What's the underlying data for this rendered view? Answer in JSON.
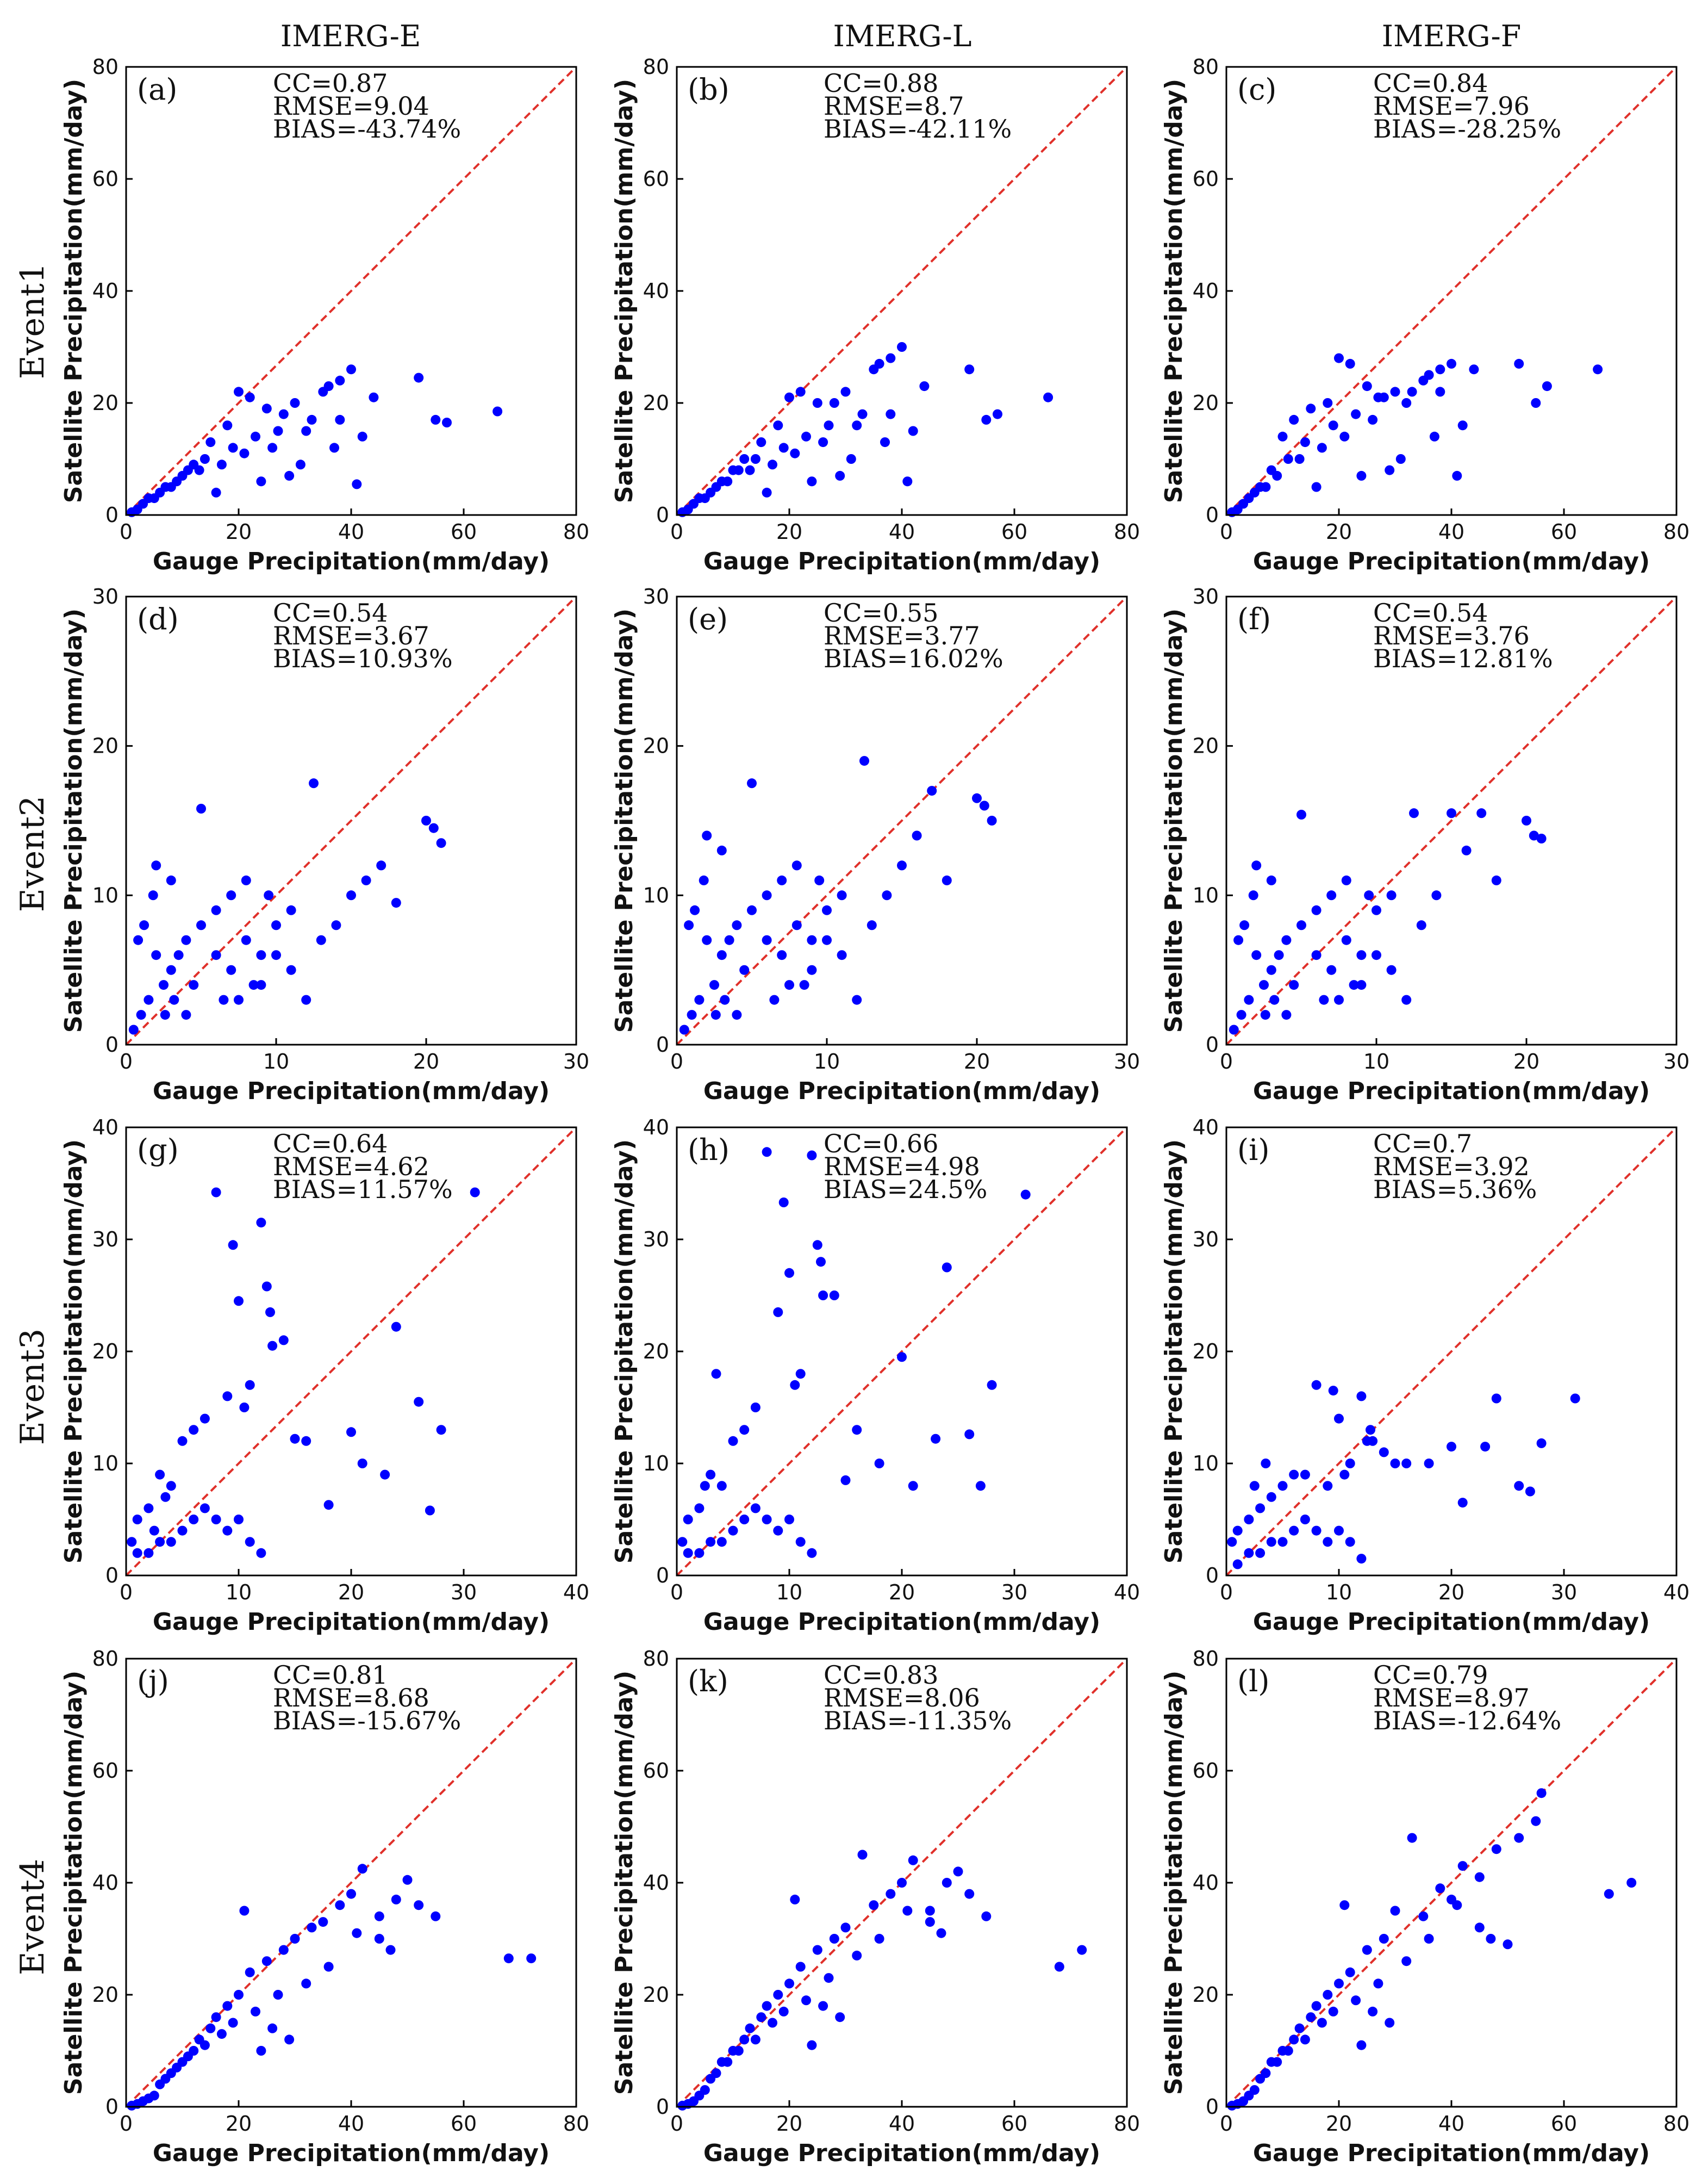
{
  "column_titles": [
    "IMERG-E",
    "IMERG-L",
    "IMERG-F"
  ],
  "row_titles": [
    "Event1",
    "Event2",
    "Event3",
    "Event4"
  ],
  "xlabel": "Gauge Precipitation(mm/day)",
  "ylabel": "Satellite Precipitation(mm/day)",
  "colors": {
    "points": "#0000ff",
    "reference_line": "#e0302a",
    "axis": "#000000"
  },
  "chart_data": [
    {
      "panel": "(a)",
      "type": "scatter",
      "product": "IMERG-E",
      "event": "Event1",
      "xlim": [
        0,
        80
      ],
      "ylim": [
        0,
        80
      ],
      "ticks": [
        0,
        20,
        40,
        60,
        80
      ],
      "stats": [
        "CC=0.87",
        "RMSE=9.04",
        "BIAS=-43.74%"
      ],
      "x": [
        52,
        55,
        57,
        66,
        41,
        40,
        38,
        36,
        35,
        30,
        28,
        25,
        22,
        20,
        18,
        15,
        12,
        10,
        8,
        6,
        5,
        3,
        2,
        1,
        33,
        27,
        23,
        19,
        14,
        11,
        9,
        7,
        4,
        44,
        38,
        32,
        26,
        21,
        17,
        13,
        16,
        24,
        29,
        31,
        37,
        42
      ],
      "y": [
        24.5,
        17,
        16.5,
        18.5,
        5.5,
        26,
        24,
        23,
        22,
        20,
        18,
        19,
        21,
        22,
        16,
        13,
        9,
        7,
        5,
        4,
        3,
        2,
        1,
        0.5,
        17,
        15,
        14,
        12,
        10,
        8,
        6,
        5,
        3,
        21,
        17,
        15,
        12,
        11,
        9,
        8,
        4,
        6,
        7,
        9,
        12,
        14
      ]
    },
    {
      "panel": "(b)",
      "type": "scatter",
      "product": "IMERG-L",
      "event": "Event1",
      "xlim": [
        0,
        80
      ],
      "ylim": [
        0,
        80
      ],
      "ticks": [
        0,
        20,
        40,
        60,
        80
      ],
      "stats": [
        "CC=0.88",
        "RMSE=8.7",
        "BIAS=-42.11%"
      ],
      "x": [
        52,
        55,
        57,
        66,
        41,
        40,
        38,
        36,
        35,
        30,
        28,
        25,
        22,
        20,
        18,
        15,
        12,
        10,
        8,
        6,
        5,
        3,
        2,
        1,
        33,
        27,
        23,
        19,
        14,
        11,
        9,
        7,
        4,
        44,
        38,
        32,
        26,
        21,
        17,
        13,
        16,
        24,
        29,
        31,
        37,
        42
      ],
      "y": [
        26,
        17,
        18,
        21,
        6,
        30,
        28,
        27,
        26,
        22,
        20,
        20,
        22,
        21,
        16,
        13,
        10,
        8,
        6,
        4,
        3,
        2,
        1,
        0.5,
        18,
        16,
        14,
        12,
        10,
        8,
        6,
        5,
        3,
        23,
        18,
        16,
        13,
        11,
        9,
        8,
        4,
        6,
        7,
        10,
        13,
        15
      ]
    },
    {
      "panel": "(c)",
      "type": "scatter",
      "product": "IMERG-F",
      "event": "Event1",
      "xlim": [
        0,
        80
      ],
      "ylim": [
        0,
        80
      ],
      "ticks": [
        0,
        20,
        40,
        60,
        80
      ],
      "stats": [
        "CC=0.84",
        "RMSE=7.96",
        "BIAS=-28.25%"
      ],
      "x": [
        52,
        55,
        57,
        66,
        41,
        40,
        38,
        36,
        35,
        30,
        28,
        25,
        22,
        20,
        18,
        15,
        12,
        10,
        8,
        6,
        5,
        3,
        2,
        1,
        33,
        27,
        23,
        19,
        14,
        11,
        9,
        7,
        4,
        44,
        38,
        32,
        26,
        21,
        17,
        13,
        16,
        24,
        29,
        31,
        37,
        42
      ],
      "y": [
        27,
        20,
        23,
        26,
        7,
        27,
        26,
        25,
        24,
        22,
        21,
        23,
        27,
        28,
        20,
        19,
        17,
        14,
        8,
        5,
        4,
        2,
        1,
        0.5,
        22,
        21,
        18,
        16,
        13,
        10,
        7,
        5,
        3,
        26,
        22,
        20,
        17,
        14,
        12,
        10,
        5,
        7,
        8,
        10,
        14,
        16
      ]
    },
    {
      "panel": "(d)",
      "type": "scatter",
      "product": "IMERG-E",
      "event": "Event2",
      "xlim": [
        0,
        30
      ],
      "ylim": [
        0,
        30
      ],
      "ticks": [
        0,
        10,
        20,
        30
      ],
      "stats": [
        "CC=0.54",
        "RMSE=3.67",
        "BIAS=10.93%"
      ],
      "x": [
        20,
        20.5,
        21,
        18,
        17,
        16,
        15,
        14,
        13,
        12.5,
        12,
        11,
        10,
        9.5,
        9,
        8,
        7,
        6,
        5,
        4.5,
        4,
        3.5,
        3,
        2.5,
        2,
        1.5,
        1,
        0.5,
        5,
        6,
        7,
        8,
        9,
        10,
        11,
        3,
        2,
        1.8,
        1.2,
        0.8,
        4,
        3.2,
        2.6,
        6.5,
        7.5,
        8.5
      ],
      "y": [
        15,
        14.5,
        13.5,
        9.5,
        12,
        11,
        10,
        8,
        7,
        17.5,
        3,
        9,
        8,
        10,
        6,
        7,
        5,
        6,
        15.8,
        4,
        7,
        6,
        5,
        4,
        6,
        3,
        2,
        1,
        8,
        9,
        10,
        11,
        4,
        6,
        5,
        11,
        12,
        10,
        8,
        7,
        2,
        3,
        2,
        3,
        3,
        4
      ]
    },
    {
      "panel": "(e)",
      "type": "scatter",
      "product": "IMERG-L",
      "event": "Event2",
      "xlim": [
        0,
        30
      ],
      "ylim": [
        0,
        30
      ],
      "ticks": [
        0,
        10,
        20,
        30
      ],
      "stats": [
        "CC=0.55",
        "RMSE=3.77",
        "BIAS=16.02%"
      ],
      "x": [
        20,
        20.5,
        21,
        18,
        17,
        16,
        15,
        14,
        13,
        12.5,
        12,
        11,
        10,
        9.5,
        9,
        8,
        7,
        6,
        5,
        4.5,
        4,
        3.5,
        3,
        2.5,
        2,
        1.5,
        1,
        0.5,
        5,
        6,
        7,
        8,
        9,
        10,
        11,
        3,
        2,
        1.8,
        1.2,
        0.8,
        4,
        3.2,
        2.6,
        6.5,
        7.5,
        8.5
      ],
      "y": [
        16.5,
        16,
        15,
        11,
        17,
        14,
        12,
        10,
        8,
        19,
        3,
        10,
        9,
        11,
        7,
        8,
        6,
        7,
        17.5,
        5,
        8,
        7,
        6,
        4,
        7,
        3,
        2,
        1,
        9,
        10,
        11,
        12,
        5,
        7,
        6,
        13,
        14,
        11,
        9,
        8,
        2,
        3,
        2,
        3,
        4,
        4
      ]
    },
    {
      "panel": "(f)",
      "type": "scatter",
      "product": "IMERG-F",
      "event": "Event2",
      "xlim": [
        0,
        30
      ],
      "ylim": [
        0,
        30
      ],
      "ticks": [
        0,
        10,
        20,
        30
      ],
      "stats": [
        "CC=0.54",
        "RMSE=3.76",
        "BIAS=12.81%"
      ],
      "x": [
        20,
        20.5,
        21,
        18,
        17,
        16,
        15,
        14,
        13,
        12.5,
        12,
        11,
        10,
        9.5,
        9,
        8,
        7,
        6,
        5,
        4.5,
        4,
        3.5,
        3,
        2.5,
        2,
        1.5,
        1,
        0.5,
        5,
        6,
        7,
        8,
        9,
        10,
        11,
        3,
        2,
        1.8,
        1.2,
        0.8,
        4,
        3.2,
        2.6,
        6.5,
        7.5,
        8.5
      ],
      "y": [
        15,
        14,
        13.8,
        11,
        15.5,
        13,
        15.5,
        10,
        8,
        15.5,
        3,
        10,
        9,
        10,
        6,
        7,
        5,
        6,
        15.4,
        4,
        7,
        6,
        5,
        4,
        6,
        3,
        2,
        1,
        8,
        9,
        10,
        11,
        4,
        6,
        5,
        11,
        12,
        10,
        8,
        7,
        2,
        3,
        2,
        3,
        3,
        4
      ]
    },
    {
      "panel": "(g)",
      "type": "scatter",
      "product": "IMERG-E",
      "event": "Event3",
      "xlim": [
        0,
        40
      ],
      "ylim": [
        0,
        40
      ],
      "ticks": [
        0,
        10,
        20,
        30,
        40
      ],
      "stats": [
        "CC=0.64",
        "RMSE=4.62",
        "BIAS=11.57%"
      ],
      "x": [
        8,
        12,
        9.5,
        10,
        12.5,
        12.8,
        13,
        14,
        11,
        10.5,
        9,
        7,
        6,
        5,
        4,
        3,
        2,
        1,
        0.5,
        24,
        23,
        26,
        27,
        28,
        20,
        21,
        18,
        16,
        15,
        31,
        7,
        6,
        5,
        4,
        3,
        2,
        1,
        8,
        9,
        10,
        11,
        12,
        3.5,
        2.5
      ],
      "y": [
        34.2,
        31.5,
        29.5,
        24.5,
        25.8,
        23.5,
        20.5,
        21,
        17,
        15,
        16,
        14,
        13,
        12,
        8,
        9,
        6,
        5,
        3,
        22.2,
        9,
        15.5,
        5.8,
        13,
        12.8,
        10,
        6.3,
        12,
        12.2,
        34.2,
        6,
        5,
        4,
        3,
        3,
        2,
        2,
        5,
        4,
        5,
        3,
        2,
        7,
        4
      ]
    },
    {
      "panel": "(h)",
      "type": "scatter",
      "product": "IMERG-L",
      "event": "Event3",
      "xlim": [
        0,
        40
      ],
      "ylim": [
        0,
        40
      ],
      "ticks": [
        0,
        10,
        20,
        30,
        40
      ],
      "stats": [
        "CC=0.66",
        "RMSE=4.98",
        "BIAS=24.5%"
      ],
      "x": [
        8,
        12,
        9.5,
        10,
        12.5,
        12.8,
        13,
        14,
        11,
        10.5,
        9,
        7,
        6,
        5,
        4,
        3,
        2,
        1,
        0.5,
        24,
        23,
        26,
        27,
        28,
        20,
        21,
        18,
        16,
        15,
        31,
        7,
        6,
        5,
        4,
        3,
        2,
        1,
        8,
        9,
        10,
        11,
        12,
        3.5,
        2.5
      ],
      "y": [
        37.8,
        37.5,
        33.3,
        27,
        29.5,
        28,
        25,
        25,
        18,
        17,
        23.5,
        15,
        13,
        12,
        8,
        9,
        6,
        5,
        3,
        27.5,
        12.2,
        12.6,
        8,
        17,
        19.5,
        8,
        10,
        13,
        8.5,
        34,
        6,
        5,
        4,
        3,
        3,
        2,
        2,
        5,
        4,
        5,
        3,
        2,
        18,
        8
      ]
    },
    {
      "panel": "(i)",
      "type": "scatter",
      "product": "IMERG-F",
      "event": "Event3",
      "xlim": [
        0,
        40
      ],
      "ylim": [
        0,
        40
      ],
      "ticks": [
        0,
        10,
        20,
        30,
        40
      ],
      "stats": [
        "CC=0.7",
        "RMSE=3.92",
        "BIAS=5.36%"
      ],
      "x": [
        8,
        12,
        9.5,
        10,
        12.5,
        12.8,
        13,
        14,
        11,
        10.5,
        9,
        7,
        6,
        5,
        4,
        3,
        2,
        1,
        0.5,
        24,
        23,
        26,
        27,
        28,
        20,
        21,
        18,
        16,
        15,
        31,
        7,
        6,
        5,
        4,
        3,
        2,
        1,
        8,
        9,
        10,
        11,
        12,
        3.5,
        2.5
      ],
      "y": [
        17,
        16,
        16.5,
        14,
        12,
        13,
        12,
        11,
        10,
        9,
        8,
        9,
        9,
        8,
        7,
        6,
        5,
        4,
        3,
        15.8,
        11.5,
        8,
        7.5,
        11.8,
        11.5,
        6.5,
        10,
        10,
        10,
        15.8,
        5,
        4,
        3,
        3,
        2,
        2,
        1,
        4,
        3,
        4,
        3,
        1.5,
        10,
        8
      ]
    },
    {
      "panel": "(j)",
      "type": "scatter",
      "product": "IMERG-E",
      "event": "Event4",
      "xlim": [
        0,
        80
      ],
      "ylim": [
        0,
        80
      ],
      "ticks": [
        0,
        20,
        40,
        60,
        80
      ],
      "stats": [
        "CC=0.81",
        "RMSE=8.68",
        "BIAS=-15.67%"
      ],
      "x": [
        68,
        72,
        55,
        52,
        50,
        48,
        45,
        42,
        40,
        38,
        35,
        33,
        30,
        28,
        25,
        22,
        20,
        18,
        16,
        15,
        13,
        12,
        10,
        8,
        6,
        5,
        4,
        3,
        2,
        1,
        36,
        32,
        27,
        23,
        19,
        17,
        14,
        11,
        9,
        7,
        45,
        47,
        41,
        29,
        21,
        24,
        26
      ],
      "y": [
        26.5,
        26.5,
        34,
        36,
        40.5,
        37,
        34,
        42.5,
        38,
        36,
        33,
        32,
        30,
        28,
        26,
        24,
        20,
        18,
        16,
        14,
        12,
        10,
        8,
        6,
        4,
        2,
        1.5,
        1,
        0.5,
        0.2,
        25,
        22,
        20,
        17,
        15,
        13,
        11,
        9,
        7,
        5,
        30,
        28,
        31,
        12,
        35,
        10,
        14
      ]
    },
    {
      "panel": "(k)",
      "type": "scatter",
      "product": "IMERG-L",
      "event": "Event4",
      "xlim": [
        0,
        80
      ],
      "ylim": [
        0,
        80
      ],
      "ticks": [
        0,
        20,
        40,
        60,
        80
      ],
      "stats": [
        "CC=0.83",
        "RMSE=8.06",
        "BIAS=-11.35%"
      ],
      "x": [
        68,
        72,
        55,
        52,
        50,
        48,
        45,
        42,
        40,
        38,
        35,
        33,
        30,
        28,
        25,
        22,
        20,
        18,
        16,
        15,
        13,
        12,
        10,
        8,
        6,
        5,
        4,
        3,
        2,
        1,
        36,
        32,
        27,
        23,
        19,
        17,
        14,
        11,
        9,
        7,
        45,
        47,
        41,
        29,
        21,
        24,
        26
      ],
      "y": [
        25,
        28,
        34,
        38,
        42,
        40,
        35,
        44,
        40,
        38,
        36,
        45,
        32,
        30,
        28,
        25,
        22,
        20,
        18,
        16,
        14,
        12,
        10,
        8,
        5,
        3,
        2,
        1,
        0.5,
        0.2,
        30,
        27,
        23,
        19,
        17,
        15,
        12,
        10,
        8,
        6,
        33,
        31,
        35,
        16,
        37,
        11,
        18
      ]
    },
    {
      "panel": "(l)",
      "type": "scatter",
      "product": "IMERG-F",
      "event": "Event4",
      "xlim": [
        0,
        80
      ],
      "ylim": [
        0,
        80
      ],
      "ticks": [
        0,
        20,
        40,
        60,
        80
      ],
      "stats": [
        "CC=0.79",
        "RMSE=8.97",
        "BIAS=-12.64%"
      ],
      "x": [
        68,
        72,
        55,
        52,
        50,
        48,
        45,
        42,
        40,
        38,
        35,
        33,
        30,
        28,
        25,
        22,
        20,
        18,
        16,
        15,
        13,
        12,
        10,
        8,
        6,
        5,
        4,
        3,
        2,
        1,
        36,
        32,
        27,
        23,
        19,
        17,
        14,
        11,
        9,
        7,
        45,
        47,
        41,
        29,
        21,
        24,
        26,
        56
      ],
      "y": [
        38,
        40,
        51,
        48,
        29,
        46,
        41,
        43,
        37,
        39,
        34,
        48,
        35,
        30,
        28,
        24,
        22,
        20,
        18,
        16,
        14,
        12,
        10,
        8,
        5,
        3,
        2,
        1,
        0.5,
        0.2,
        30,
        26,
        22,
        19,
        17,
        15,
        12,
        10,
        8,
        6,
        32,
        30,
        36,
        15,
        36,
        11,
        17,
        56
      ]
    }
  ]
}
